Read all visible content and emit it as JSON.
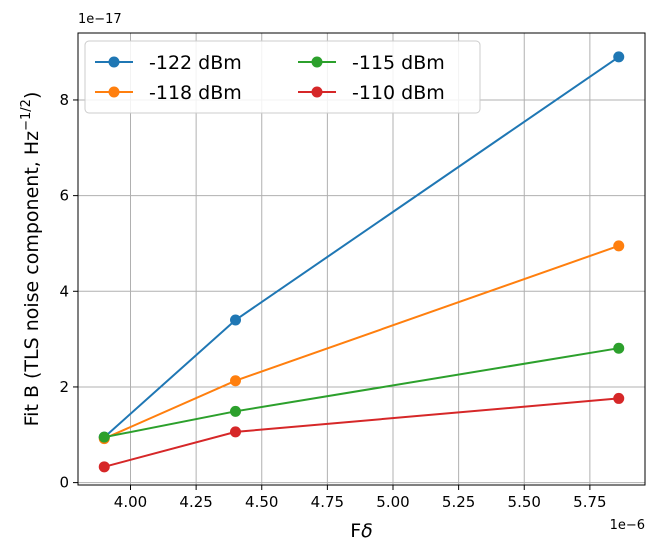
{
  "chart_data": {
    "type": "line",
    "title": "",
    "xlabel_prefix": "F",
    "xlabel_symbol": "δ",
    "ylabel_main": "Fit B (TLS noise component, Hz",
    "ylabel_exp": "−1/2",
    "ylabel_tail": ")",
    "x_offset_label": "1e−6",
    "y_offset_label": "1e−17",
    "x": [
      3.9,
      4.4,
      5.86
    ],
    "xlim": [
      3.8,
      5.96
    ],
    "ylim": [
      -0.05,
      9.4
    ],
    "x_ticks": [
      4.0,
      4.25,
      4.5,
      4.75,
      5.0,
      5.25,
      5.5,
      5.75
    ],
    "x_tick_labels": [
      "4.00",
      "4.25",
      "4.50",
      "4.75",
      "5.00",
      "5.25",
      "5.50",
      "5.75"
    ],
    "y_ticks": [
      0,
      2,
      4,
      6,
      8
    ],
    "y_tick_labels": [
      "0",
      "2",
      "4",
      "6",
      "8"
    ],
    "grid": true,
    "legend_position": "top-left",
    "legend_columns": 2,
    "series": [
      {
        "name": "-122 dBm",
        "color": "#1f77b4",
        "values": [
          0.95,
          3.4,
          8.9
        ]
      },
      {
        "name": "-118 dBm",
        "color": "#ff7f0e",
        "values": [
          0.92,
          2.13,
          4.95
        ]
      },
      {
        "name": "-115 dBm",
        "color": "#2ca02c",
        "values": [
          0.95,
          1.49,
          2.81
        ]
      },
      {
        "name": "-110 dBm",
        "color": "#d62728",
        "values": [
          0.33,
          1.06,
          1.76
        ]
      }
    ]
  }
}
